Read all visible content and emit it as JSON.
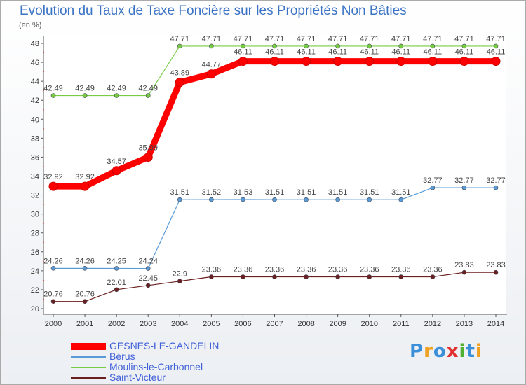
{
  "chart_data": {
    "type": "line",
    "title": "Evolution du Taux de Taxe Foncière sur les Propriétés Non Bâties",
    "ylabel": "(en %)",
    "xlabel": "",
    "ylim": [
      20,
      48
    ],
    "yticks": [
      20,
      22,
      24,
      26,
      28,
      30,
      32,
      34,
      36,
      38,
      40,
      42,
      44,
      46,
      48
    ],
    "grid": false,
    "legend": "bottom-left",
    "x": [
      "2000",
      "2001",
      "2002",
      "2003",
      "2004",
      "2005",
      "2006",
      "2007",
      "2008",
      "2009",
      "2010",
      "2011",
      "2012",
      "2013",
      "2014"
    ],
    "series": [
      {
        "name": "GESNES-LE-GANDELIN",
        "color": "#ff0000",
        "values": [
          32.92,
          32.92,
          34.57,
          35.99,
          43.89,
          44.77,
          46.11,
          46.11,
          46.11,
          46.11,
          46.11,
          46.11,
          46.11,
          46.11,
          46.11
        ],
        "labels": [
          "32.92",
          "32.92",
          "34.57",
          "35.99",
          "43.89",
          "44.77",
          "46.11",
          "46.11",
          "46.11",
          "46.11",
          "46.11",
          "46.11",
          "46.11",
          "46.11",
          "46.11"
        ]
      },
      {
        "name": "Bérus",
        "color": "#5b9bd5",
        "values": [
          24.26,
          24.26,
          24.25,
          24.24,
          31.51,
          31.52,
          31.53,
          31.51,
          31.51,
          31.51,
          31.51,
          31.51,
          32.77,
          32.77,
          32.77
        ],
        "labels": [
          "24.26",
          "24.26",
          "24.25",
          "24.24",
          "31.51",
          "31.52",
          "31.53",
          "31.51",
          "31.51",
          "31.51",
          "31.51",
          "31.51",
          "32.77",
          "32.77",
          "32.77"
        ]
      },
      {
        "name": "Moulins-le-Carbonnel",
        "color": "#77cc44",
        "values": [
          42.49,
          42.49,
          42.49,
          42.49,
          47.71,
          47.71,
          47.71,
          47.71,
          47.71,
          47.71,
          47.71,
          47.71,
          47.71,
          47.71,
          47.71
        ],
        "labels": [
          "42.49",
          "42.49",
          "42.49",
          "42.49",
          "47.71",
          "47.71",
          "47.71",
          "47.71",
          "47.71",
          "47.71",
          "47.71",
          "47.71",
          "47.71",
          "47.71",
          "47.71"
        ]
      },
      {
        "name": "Saint-Victeur",
        "color": "#6b1f1f",
        "values": [
          20.76,
          20.76,
          22.01,
          22.45,
          22.9,
          23.36,
          23.36,
          23.36,
          23.36,
          23.36,
          23.36,
          23.36,
          23.36,
          23.83,
          23.83
        ],
        "labels": [
          "20.76",
          "20.76",
          "22.01",
          "22.45",
          "22.9",
          "23.36",
          "23.36",
          "23.36",
          "23.36",
          "23.36",
          "23.36",
          "23.36",
          "23.36",
          "23.83",
          "23.83"
        ]
      }
    ]
  },
  "brand": {
    "letters": [
      "P",
      "r",
      "o",
      "x",
      "i",
      "t",
      "i"
    ],
    "colors": [
      "#3a8fd8",
      "#f0a020",
      "#3a8fd8",
      "#e03030",
      "#50b030",
      "#3a8fd8",
      "#f0a020"
    ]
  }
}
